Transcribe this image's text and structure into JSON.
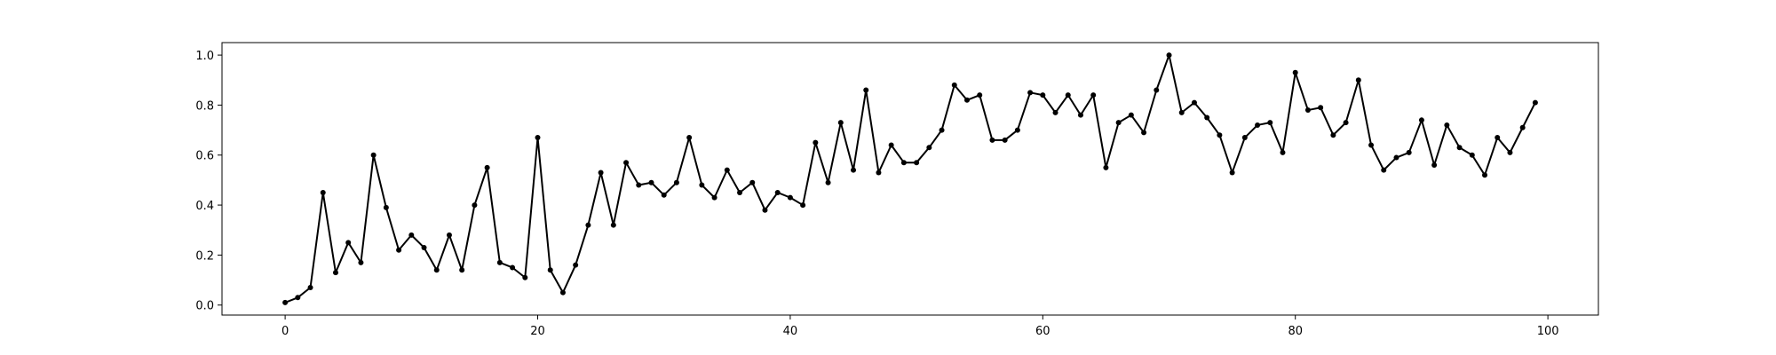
{
  "chart_data": {
    "type": "line",
    "title": "",
    "xlabel": "",
    "ylabel": "",
    "xlim": [
      -5,
      104
    ],
    "ylim": [
      -0.04,
      1.05
    ],
    "xticks": [
      0,
      20,
      40,
      60,
      80,
      100
    ],
    "xtick_labels": [
      "0",
      "20",
      "40",
      "60",
      "80",
      "100"
    ],
    "yticks": [
      0.0,
      0.2,
      0.4,
      0.6,
      0.8,
      1.0
    ],
    "ytick_labels": [
      "0.0",
      "0.2",
      "0.4",
      "0.6",
      "0.8",
      "1.0"
    ],
    "grid": false,
    "legend": "none",
    "line_color": "#000000",
    "marker": "dot",
    "series": [
      {
        "x": [
          0,
          1,
          2,
          3,
          4,
          5,
          6,
          7,
          8,
          9,
          10,
          11,
          12,
          13,
          14,
          15,
          16,
          17,
          18,
          19,
          20,
          21,
          22,
          23,
          24,
          25,
          26,
          27,
          28,
          29,
          30,
          31,
          32,
          33,
          34,
          35,
          36,
          37,
          38,
          39,
          40,
          41,
          42,
          43,
          44,
          45,
          46,
          47,
          48,
          49,
          50,
          51,
          52,
          53,
          54,
          55,
          56,
          57,
          58,
          59,
          60,
          61,
          62,
          63,
          64,
          65,
          66,
          67,
          68,
          69,
          70,
          71,
          72,
          73,
          74,
          75,
          76,
          77,
          78,
          79,
          80,
          81,
          82,
          83,
          84,
          85,
          86,
          87,
          88,
          89,
          90,
          91,
          92,
          93,
          94,
          95,
          96,
          97,
          98,
          99
        ],
        "values": [
          0.01,
          0.03,
          0.07,
          0.45,
          0.13,
          0.25,
          0.17,
          0.6,
          0.39,
          0.22,
          0.28,
          0.23,
          0.14,
          0.28,
          0.14,
          0.4,
          0.55,
          0.17,
          0.15,
          0.11,
          0.67,
          0.14,
          0.05,
          0.16,
          0.32,
          0.53,
          0.32,
          0.57,
          0.48,
          0.49,
          0.44,
          0.49,
          0.67,
          0.48,
          0.43,
          0.54,
          0.45,
          0.49,
          0.38,
          0.45,
          0.43,
          0.4,
          0.65,
          0.49,
          0.73,
          0.54,
          0.86,
          0.53,
          0.64,
          0.57,
          0.57,
          0.63,
          0.7,
          0.88,
          0.82,
          0.84,
          0.66,
          0.66,
          0.7,
          0.85,
          0.84,
          0.77,
          0.84,
          0.76,
          0.84,
          0.55,
          0.73,
          0.76,
          0.69,
          0.86,
          1.0,
          0.77,
          0.81,
          0.75,
          0.68,
          0.53,
          0.67,
          0.72,
          0.73,
          0.61,
          0.93,
          0.78,
          0.79,
          0.68,
          0.73,
          0.9,
          0.64,
          0.54,
          0.59,
          0.61,
          0.74,
          0.56,
          0.72,
          0.63,
          0.6,
          0.52,
          0.67,
          0.61,
          0.71,
          0.81
        ]
      }
    ]
  }
}
